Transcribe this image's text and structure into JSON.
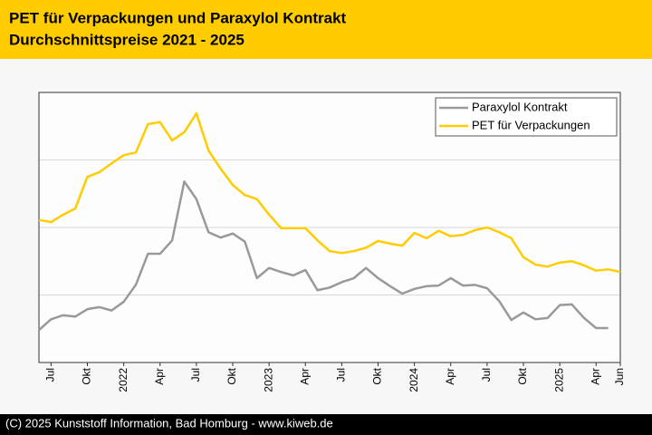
{
  "chart_data": {
    "type": "line",
    "title": "PET für Verpackungen und Paraxylol Kontrakt",
    "subtitle": "Durchschnittspreise 2021 - 2025",
    "source": "(C) 2025 Kunststoff Information, Bad Homburg - www.kiweb.de",
    "categories": [
      null,
      "Jul",
      null,
      null,
      "Okt",
      null,
      null,
      "2022",
      null,
      null,
      "Apr",
      null,
      null,
      "Jul",
      null,
      null,
      "Okt",
      null,
      null,
      "2023",
      null,
      null,
      "Apr",
      null,
      null,
      "Jul",
      null,
      null,
      "Okt",
      null,
      null,
      "2024",
      null,
      null,
      "Apr",
      null,
      null,
      "Jul",
      null,
      null,
      "Okt",
      null,
      null,
      "2025",
      null,
      null,
      "Apr",
      null,
      "Jun"
    ],
    "series": [
      {
        "name": "Paraxylol Kontrakt",
        "color": "#999999",
        "values": [
          0.48,
          0.64,
          0.7,
          0.68,
          0.79,
          0.82,
          0.77,
          0.9,
          1.15,
          1.61,
          1.61,
          1.81,
          2.68,
          2.42,
          1.93,
          1.85,
          1.91,
          1.79,
          1.25,
          1.4,
          1.34,
          1.29,
          1.37,
          1.07,
          1.11,
          1.19,
          1.25,
          1.4,
          1.25,
          1.13,
          1.02,
          1.09,
          1.13,
          1.14,
          1.25,
          1.14,
          1.15,
          1.1,
          0.91,
          0.63,
          0.74,
          0.64,
          0.66,
          0.85,
          0.86,
          0.66,
          0.51,
          0.51,
          null
        ]
      },
      {
        "name": "PET für Verpackungen",
        "color": "#ffcc00",
        "values": [
          2.11,
          2.08,
          2.19,
          2.28,
          2.75,
          2.82,
          2.95,
          3.07,
          3.11,
          3.53,
          3.56,
          3.29,
          3.41,
          3.69,
          3.14,
          2.87,
          2.63,
          2.48,
          2.42,
          2.19,
          1.99,
          1.99,
          1.99,
          1.81,
          1.65,
          1.62,
          1.65,
          1.7,
          1.8,
          1.76,
          1.73,
          1.92,
          1.84,
          1.95,
          1.87,
          1.89,
          1.96,
          2.0,
          1.93,
          1.84,
          1.56,
          1.45,
          1.42,
          1.48,
          1.5,
          1.44,
          1.36,
          1.38,
          1.34
        ]
      }
    ],
    "ylim": [
      0,
      4
    ],
    "yticks": [
      1,
      2,
      3
    ],
    "grid": true,
    "legend": "upper right"
  }
}
